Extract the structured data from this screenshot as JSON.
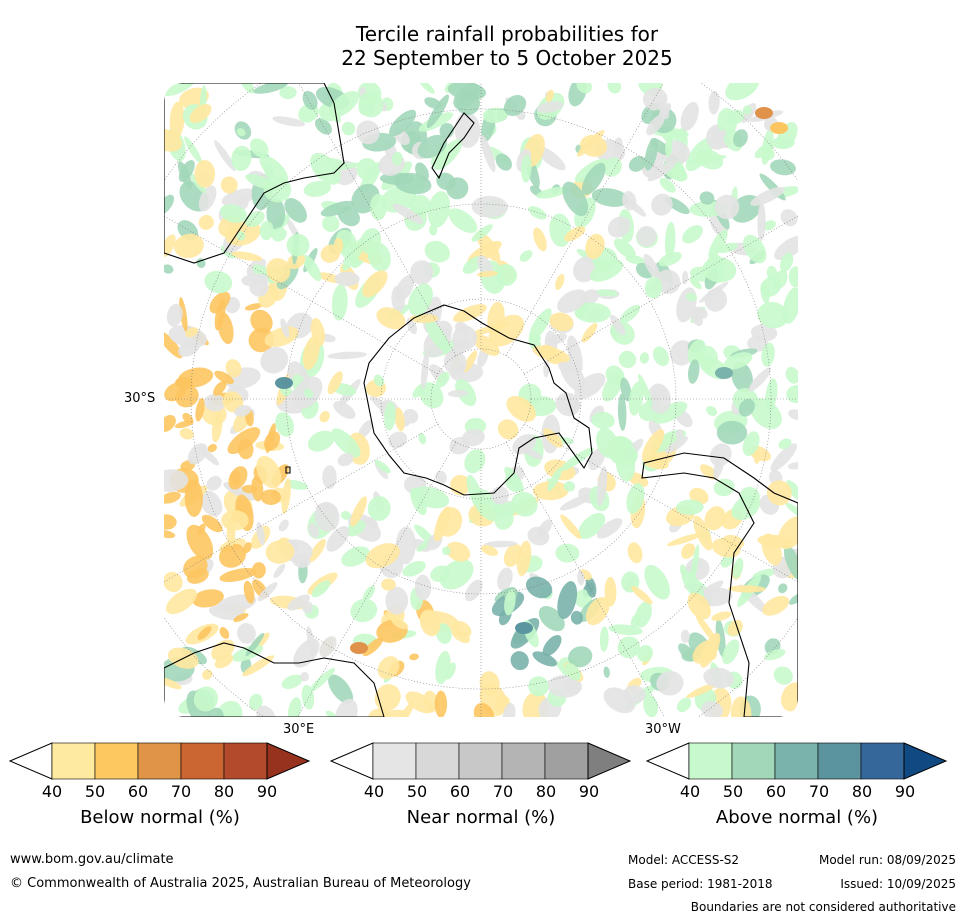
{
  "title": {
    "line1": "Tercile rainfall probabilities for",
    "line2": "22 September to 5 October 2025"
  },
  "map": {
    "projection": "south polar stereographic",
    "labels": {
      "lat_30s": "30°S",
      "lon_30e": "30°E",
      "lon_30w": "30°W"
    },
    "colors": {
      "ocean_bg": "#ffffff",
      "near_light": "#e3e3e3",
      "below_light": "#ffe8a0",
      "below_mid": "#fdc560",
      "below_strong": "#e0914a",
      "above_light": "#c8f9cc",
      "above_mid": "#a2d7b9",
      "above_strong": "#7ab3ab",
      "above_deep": "#5b95a0",
      "coastline": "#000000",
      "graticule": "#7a7a7a"
    }
  },
  "colorbars": [
    {
      "name": "below",
      "title": "Below normal (%)",
      "ticks": [
        "40",
        "50",
        "60",
        "70",
        "80",
        "90"
      ],
      "colors": [
        "#ffffff",
        "#ffeba0",
        "#fdc860",
        "#e09448",
        "#cb6531",
        "#b24a2b",
        "#97321f"
      ]
    },
    {
      "name": "near",
      "title": "Near normal (%)",
      "ticks": [
        "40",
        "50",
        "60",
        "70",
        "80",
        "90"
      ],
      "colors": [
        "#ffffff",
        "#e5e5e5",
        "#d8d8d8",
        "#c8c8c8",
        "#b4b4b4",
        "#a0a0a0",
        "#7f7f7f"
      ]
    },
    {
      "name": "above",
      "title": "Above normal (%)",
      "ticks": [
        "40",
        "50",
        "60",
        "70",
        "80",
        "90"
      ],
      "colors": [
        "#ffffff",
        "#c8f9cc",
        "#a2d7b9",
        "#7ab3ab",
        "#5b949f",
        "#35679a",
        "#114a82"
      ]
    }
  ],
  "footer": {
    "website": "www.bom.gov.au/climate",
    "copyright": "© Commonwealth of Australia 2025, Australian Bureau of Meteorology",
    "model": "Model: ACCESS-S2",
    "base_period": "Base period: 1981-2018",
    "model_run": "Model run: 08/09/2025",
    "issued": "Issued: 10/09/2025",
    "disclaimer": "Boundaries are not considered authoritative"
  }
}
